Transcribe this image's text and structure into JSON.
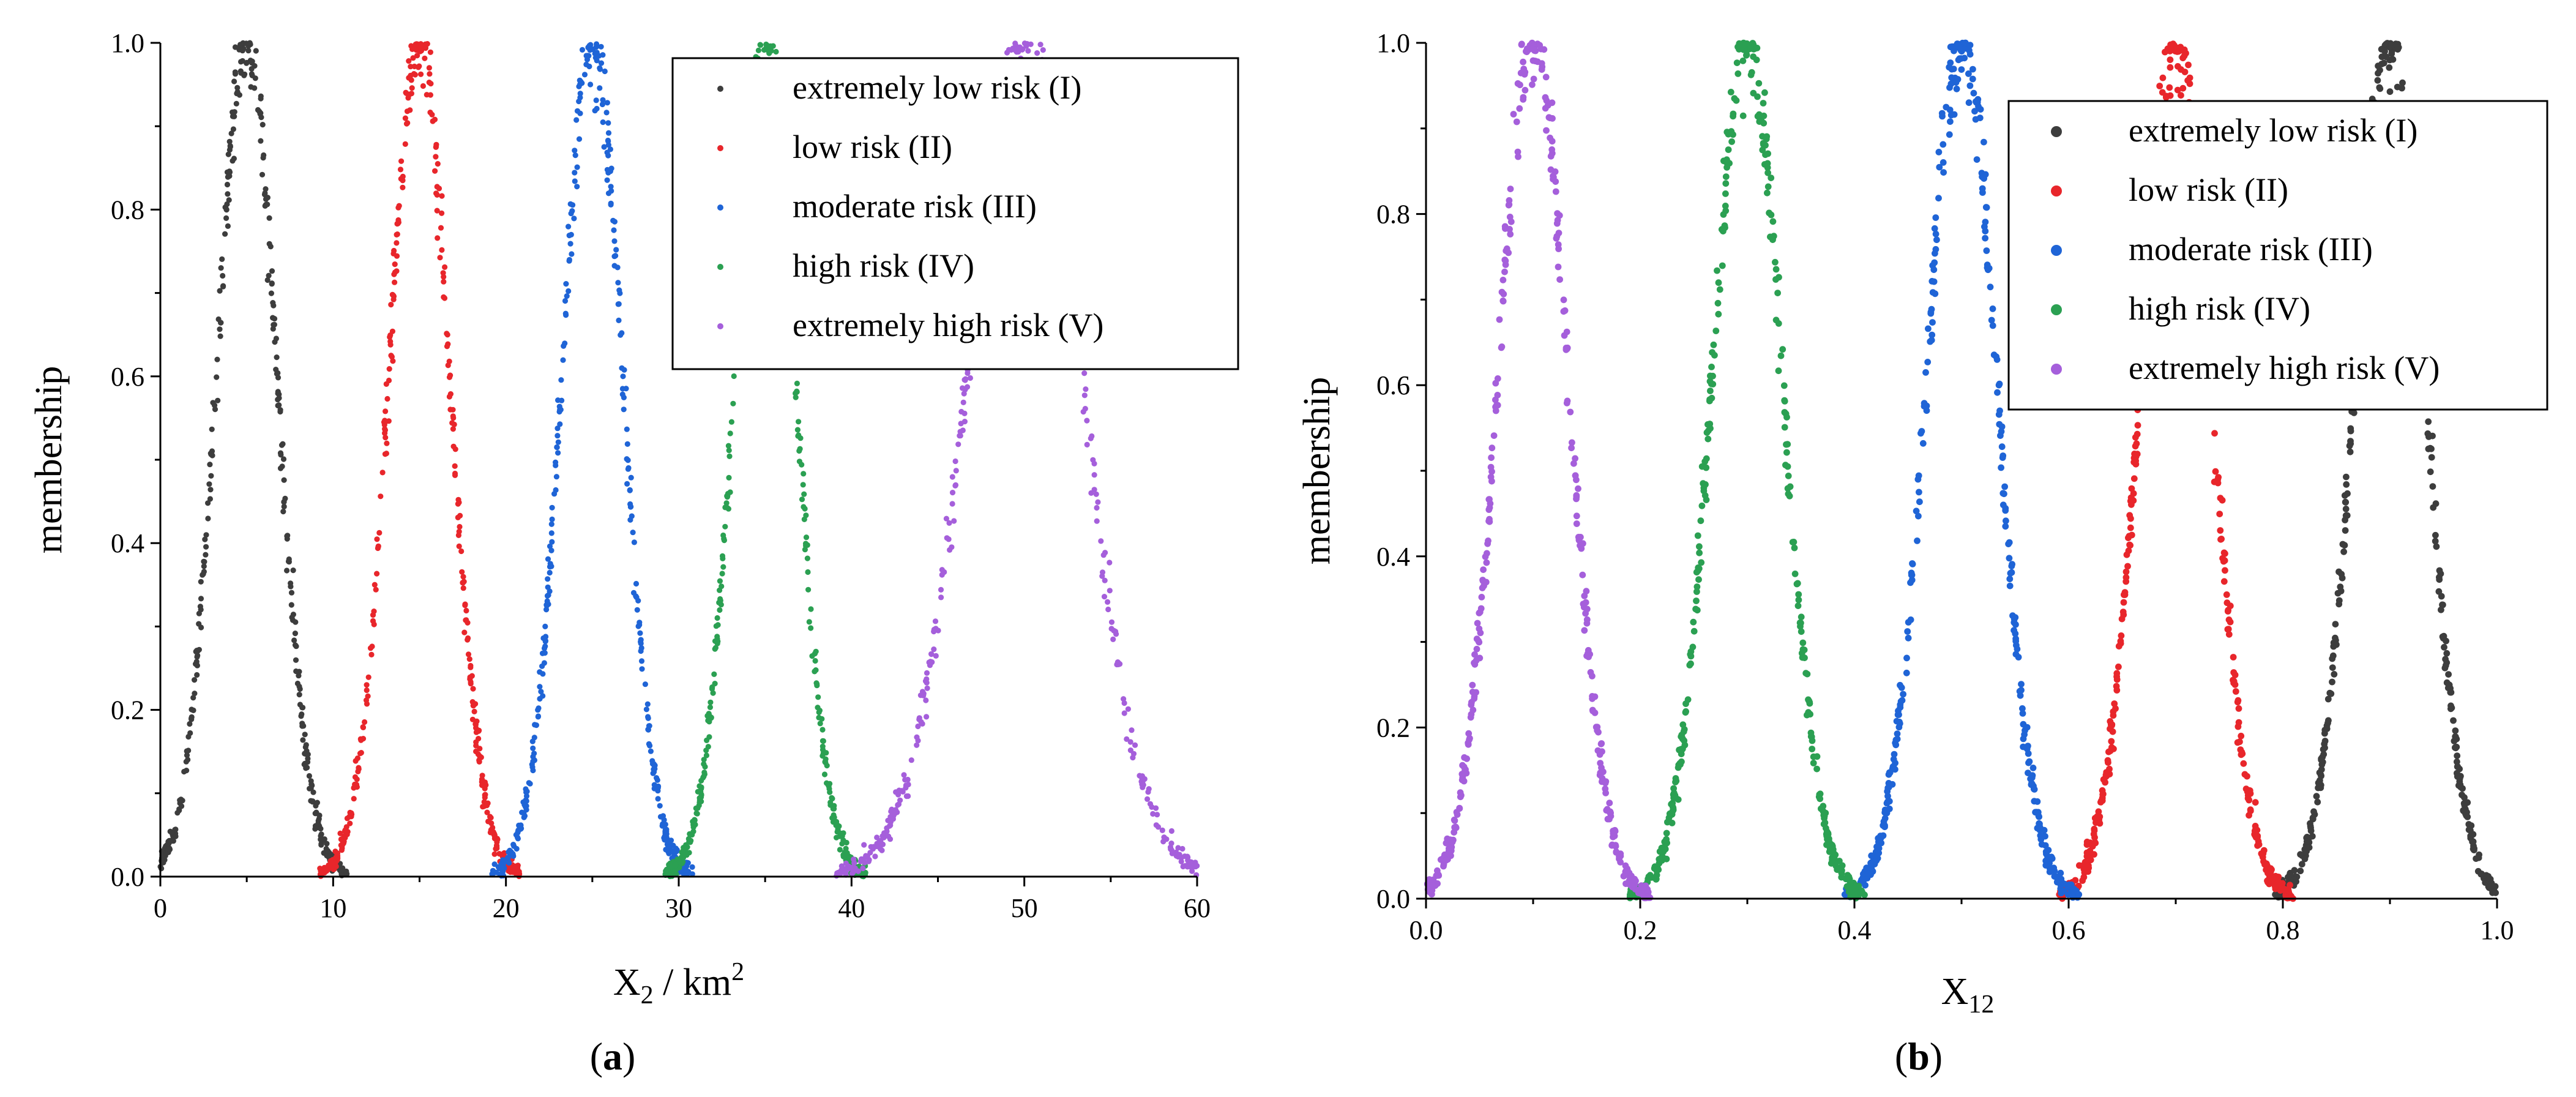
{
  "chart_data": [
    {
      "type": "scatter",
      "panel_label": "(a)",
      "panel_letter": "a",
      "xlabel_main": "X",
      "xlabel_sub": "2",
      "xlabel_unit": " / km",
      "xlabel_sup": "2",
      "ylabel": "membership",
      "xlim": [
        0,
        60
      ],
      "ylim": [
        0.0,
        1.0
      ],
      "xticks": [
        "0",
        "10",
        "20",
        "30",
        "40",
        "50",
        "60"
      ],
      "yticks": [
        "0.0",
        "0.2",
        "0.4",
        "0.6",
        "0.8",
        "1.0"
      ],
      "legend_position": "top-right",
      "series": [
        {
          "name": "extremely low risk (I)",
          "color": "#3d3d3d",
          "center": 5,
          "spread": 1.75,
          "points": 420
        },
        {
          "name": "low risk (II)",
          "color": "#e8262b",
          "center": 15,
          "spread": 1.75,
          "points": 420
        },
        {
          "name": "moderate risk (III)",
          "color": "#1f64d6",
          "center": 25,
          "spread": 1.75,
          "points": 420
        },
        {
          "name": "high risk (IV)",
          "color": "#2ba052",
          "center": 35,
          "spread": 1.75,
          "points": 420
        },
        {
          "name": "extremely high risk (V)",
          "color": "#a55fdb",
          "center": 50,
          "spread": 3.3,
          "points": 420
        }
      ]
    },
    {
      "type": "scatter",
      "panel_label": "(b)",
      "panel_letter": "b",
      "xlabel_main": "X",
      "xlabel_sub": "12",
      "xlabel_unit": "",
      "xlabel_sup": "",
      "ylabel": "membership",
      "xlim": [
        0.0,
        1.0
      ],
      "ylim": [
        0.0,
        1.0
      ],
      "xticks": [
        "0.0",
        "0.2",
        "0.4",
        "0.6",
        "0.8",
        "1.0"
      ],
      "yticks": [
        "0.0",
        "0.2",
        "0.4",
        "0.6",
        "0.8",
        "1.0"
      ],
      "legend_position": "top-right",
      "series": [
        {
          "name": "extremely low risk (I)",
          "color": "#3d3d3d",
          "center": 0.9,
          "spread": 0.033,
          "points": 420
        },
        {
          "name": "low risk (II)",
          "color": "#e8262b",
          "center": 0.7,
          "spread": 0.033,
          "points": 420
        },
        {
          "name": "moderate risk (III)",
          "color": "#1f64d6",
          "center": 0.5,
          "spread": 0.033,
          "points": 420
        },
        {
          "name": "high risk (IV)",
          "color": "#2ba052",
          "center": 0.3,
          "spread": 0.033,
          "points": 420
        },
        {
          "name": "extremely high risk (V)",
          "color": "#a55fdb",
          "center": 0.1,
          "spread": 0.033,
          "points": 420
        }
      ]
    }
  ]
}
